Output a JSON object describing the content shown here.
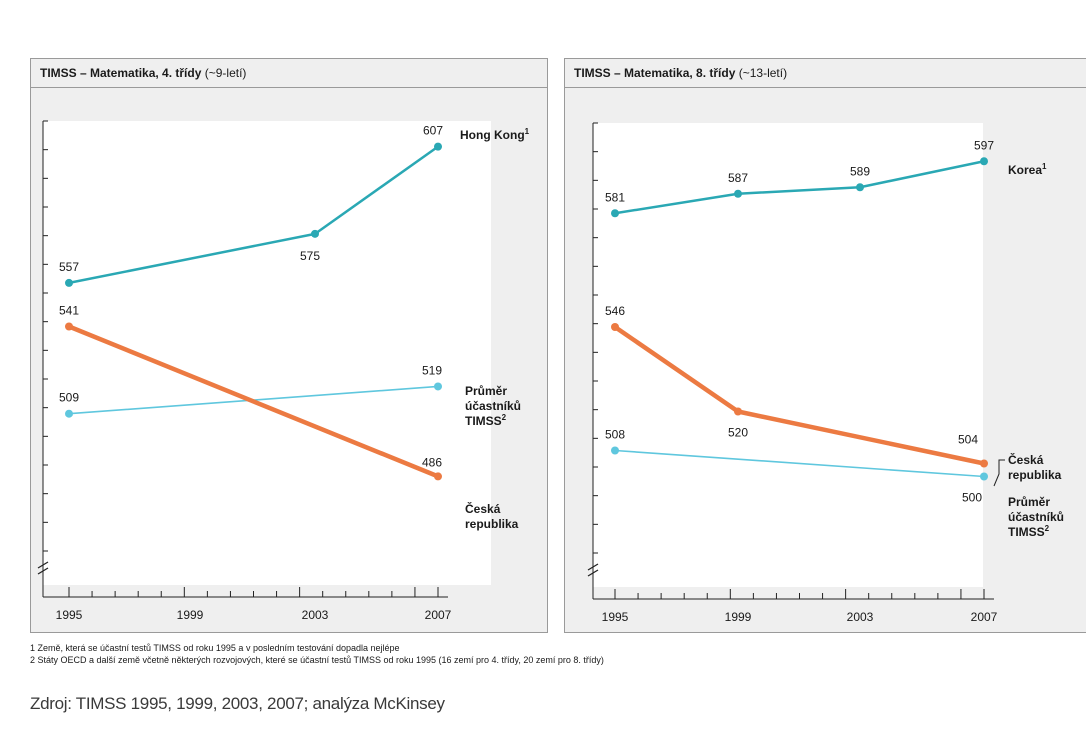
{
  "chart_data": [
    {
      "type": "line",
      "title": "TIMSS – Matematika, 4. třídy",
      "subtitle": "(~9-letí)",
      "categories": [
        "1995",
        "1999",
        "2003",
        "2007"
      ],
      "ylim": [
        470,
        612
      ],
      "series": [
        {
          "name": "Hong Kong",
          "name_sup": "1",
          "points": [
            {
              "x": "1995",
              "y": 557
            },
            {
              "x": "2003",
              "y": 575
            },
            {
              "x": "2007",
              "y": 607
            }
          ],
          "color": "#2aa8b4",
          "width": 2.5
        },
        {
          "name": "Průměr účastníků TIMSS",
          "name_sup": "2",
          "points": [
            {
              "x": "1995",
              "y": 509
            },
            {
              "x": "2007",
              "y": 519
            }
          ],
          "color": "#5fc7de",
          "width": 1.6
        },
        {
          "name": "Česká republika",
          "name_sup": "",
          "points": [
            {
              "x": "1995",
              "y": 541
            },
            {
              "x": "2007",
              "y": 486
            }
          ],
          "color": "#ec7a42",
          "width": 4.5
        }
      ]
    },
    {
      "type": "line",
      "title": "TIMSS – Matematika, 8. třídy",
      "subtitle": "(~13-letí)",
      "categories": [
        "1995",
        "1999",
        "2003",
        "2007"
      ],
      "ylim": [
        490,
        602
      ],
      "series": [
        {
          "name": "Korea",
          "name_sup": "1",
          "points": [
            {
              "x": "1995",
              "y": 581
            },
            {
              "x": "1999",
              "y": 587
            },
            {
              "x": "2003",
              "y": 589
            },
            {
              "x": "2007",
              "y": 597
            }
          ],
          "color": "#2aa8b4",
          "width": 2.5
        },
        {
          "name": "Česká republika",
          "name_sup": "",
          "points": [
            {
              "x": "1995",
              "y": 546
            },
            {
              "x": "1999",
              "y": 520
            },
            {
              "x": "2007",
              "y": 504
            }
          ],
          "color": "#ec7a42",
          "width": 4.5
        },
        {
          "name": "Průměr účastníků TIMSS",
          "name_sup": "2",
          "points": [
            {
              "x": "1995",
              "y": 508
            },
            {
              "x": "2007",
              "y": 500
            }
          ],
          "color": "#5fc7de",
          "width": 1.6
        }
      ]
    }
  ],
  "footnotes": [
    "1 Země, která se účastní testů TIMSS od roku 1995 a v posledním testování dopadla nejlépe",
    "2 Státy OECD a další země včetně některých rozvojových, které se účastní testů TIMSS od roku 1995 (16 zemí pro 4. třídy, 20 zemí pro 8. třídy)"
  ],
  "source": "Zdroj: TIMSS 1995, 1999, 2003, 2007; analýza McKinsey"
}
